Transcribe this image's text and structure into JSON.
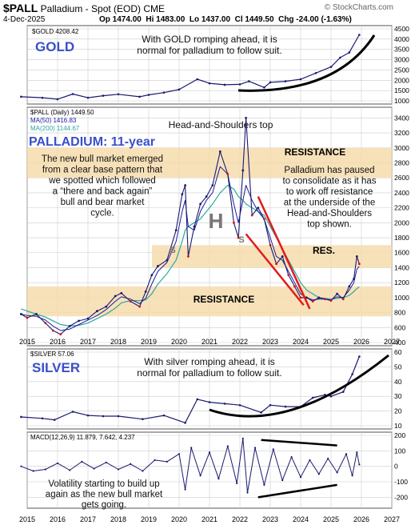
{
  "header": {
    "symbol": "$PALL",
    "description": "Palladium - Spot (EOD)",
    "exchange": "CME",
    "date": "4-Dec-2025",
    "open": "Op 1474.00",
    "high": "Hi 1483.00",
    "low": "Lo 1437.00",
    "close": "Cl 1449.50",
    "change": "Chg -24.00 (-1.63%)",
    "source": "© StockCharts.com"
  },
  "colors": {
    "price": "#1a1a70",
    "bar_down": "#d01010",
    "ma50": "#1a1aa0",
    "ma200": "#2aa8a0",
    "gold_line": "#1a1a70",
    "big_label": "#3a50c8",
    "trend_red": "#e31a1a",
    "band": "#f5d9a8",
    "grid": "#cccccc"
  },
  "x_axis": {
    "years": [
      "2015",
      "2016",
      "2017",
      "2018",
      "2019",
      "2020",
      "2021",
      "2022",
      "2023",
      "2024",
      "2025",
      "2026",
      "2027"
    ]
  },
  "chart_data": [
    {
      "type": "line",
      "id": "gold",
      "legend": "$GOLD 4208.42",
      "label_big": "GOLD",
      "annotation": [
        "With GOLD romping ahead, it is",
        "normal for palladium to follow suit."
      ],
      "x": [
        2014.8,
        2015.5,
        2016.0,
        2016.5,
        2017.0,
        2017.5,
        2018.0,
        2018.7,
        2019.0,
        2019.5,
        2020.0,
        2020.6,
        2021.0,
        2021.5,
        2022.0,
        2022.3,
        2022.8,
        2023.0,
        2023.5,
        2024.0,
        2024.5,
        2025.0,
        2025.3,
        2025.6,
        2025.93
      ],
      "y": [
        1200,
        1150,
        1080,
        1330,
        1150,
        1250,
        1320,
        1200,
        1290,
        1400,
        1550,
        2050,
        1850,
        1780,
        1800,
        1950,
        1650,
        1900,
        1950,
        2050,
        2350,
        2650,
        3100,
        3350,
        4208
      ],
      "ylim": [
        1000,
        4500
      ],
      "ticks": [
        1000,
        1500,
        2000,
        2500,
        3000,
        3500,
        4000,
        4500
      ]
    },
    {
      "type": "line",
      "id": "palladium",
      "legend": "$PALL (Daily) 1449.50",
      "ma50_label": "MA(50) 1416.83",
      "ma200_label": "MA(200) 1144.67",
      "label_big": "PALLADIUM: 11-year",
      "annotation_left": [
        "The new bull market emerged",
        "from a clear base pattern that",
        "we spotted which followed",
        "a “there and back again”",
        "bull and bear market",
        "cycle."
      ],
      "annotation_right": [
        "Palladium has paused",
        "to consolidate as it has",
        "to work off resistance",
        "at the underside of the",
        "Head-and-Shoulders",
        "top shown."
      ],
      "hs_label": "Head-and-Shoulders top",
      "pattern_labels": {
        "left_shoulder": "S",
        "head": "H",
        "right_shoulder": "S"
      },
      "bands": [
        {
          "label": "RESISTANCE",
          "from": 2600,
          "to": 3000
        },
        {
          "label": "RES.",
          "from": 1400,
          "to": 1700
        },
        {
          "label": "RESISTANCE",
          "from": 750,
          "to": 1150
        }
      ],
      "trend_lines": [
        {
          "x": [
            2022.6,
            2024.3
          ],
          "y": [
            2350,
            850
          ]
        },
        {
          "x": [
            2022.2,
            2024.1
          ],
          "y": [
            1850,
            900
          ]
        }
      ],
      "x": [
        2014.8,
        2015.0,
        2015.3,
        2015.6,
        2015.85,
        2016.1,
        2016.4,
        2016.7,
        2017.0,
        2017.3,
        2017.6,
        2017.9,
        2018.1,
        2018.4,
        2018.7,
        2018.9,
        2019.1,
        2019.3,
        2019.6,
        2019.9,
        2020.1,
        2020.2,
        2020.3,
        2020.5,
        2020.7,
        2020.9,
        2021.1,
        2021.35,
        2021.6,
        2021.8,
        2021.95,
        2022.1,
        2022.2,
        2022.4,
        2022.6,
        2022.8,
        2023.0,
        2023.2,
        2023.4,
        2023.6,
        2023.8,
        2024.0,
        2024.2,
        2024.4,
        2024.6,
        2024.8,
        2025.0,
        2025.2,
        2025.4,
        2025.6,
        2025.75,
        2025.85,
        2025.93
      ],
      "y": [
        780,
        730,
        780,
        660,
        560,
        510,
        620,
        690,
        720,
        820,
        880,
        1020,
        1060,
        950,
        880,
        1080,
        1300,
        1420,
        1500,
        1900,
        2380,
        2500,
        1550,
        1950,
        2250,
        2350,
        2500,
        2950,
        2650,
        2000,
        1800,
        2700,
        3400,
        2100,
        2200,
        2050,
        1700,
        1450,
        1550,
        1300,
        1150,
        1000,
        1000,
        950,
        1000,
        980,
        960,
        1050,
        980,
        1150,
        1250,
        1550,
        1450
      ],
      "ma50": [
        780,
        760,
        750,
        700,
        620,
        560,
        580,
        640,
        700,
        760,
        840,
        950,
        1010,
        980,
        920,
        990,
        1180,
        1350,
        1470,
        1750,
        2150,
        2300,
        1950,
        1900,
        2150,
        2300,
        2400,
        2750,
        2650,
        2250,
        2000,
        2300,
        2500,
        2300,
        2150,
        2050,
        1800,
        1550,
        1500,
        1350,
        1200,
        1050,
        1000,
        970,
        980,
        980,
        970,
        1010,
        1000,
        1100,
        1200,
        1380,
        1417
      ],
      "ma200": [
        850,
        820,
        780,
        740,
        690,
        640,
        620,
        630,
        660,
        720,
        780,
        860,
        930,
        960,
        960,
        970,
        1050,
        1180,
        1320,
        1500,
        1750,
        1900,
        1950,
        2000,
        2050,
        2150,
        2250,
        2400,
        2500,
        2450,
        2350,
        2300,
        2250,
        2200,
        2150,
        2100,
        1950,
        1800,
        1650,
        1500,
        1350,
        1200,
        1100,
        1050,
        1000,
        990,
        980,
        990,
        1000,
        1030,
        1080,
        1120,
        1145
      ],
      "ylim": [
        400,
        3500
      ],
      "ticks": [
        400,
        600,
        800,
        1000,
        1200,
        1400,
        1600,
        1800,
        2000,
        2200,
        2400,
        2600,
        2800,
        3000,
        3200,
        3400
      ]
    },
    {
      "type": "line",
      "id": "silver",
      "legend": "$SILVER 57.06",
      "label_big": "SILVER",
      "annotation": [
        "With silver romping ahead, it is",
        "normal for palladium to follow suit."
      ],
      "x": [
        2014.8,
        2015.5,
        2015.9,
        2016.5,
        2017.0,
        2017.5,
        2018.0,
        2018.8,
        2019.5,
        2020.2,
        2020.6,
        2021.0,
        2021.5,
        2022.0,
        2022.7,
        2023.0,
        2023.5,
        2024.0,
        2024.4,
        2024.8,
        2025.0,
        2025.4,
        2025.7,
        2025.93
      ],
      "y": [
        16,
        15,
        14,
        19.5,
        17,
        16.5,
        16.5,
        14.5,
        17,
        12,
        28,
        26,
        25,
        24,
        19,
        24,
        23,
        23,
        29,
        31,
        30,
        33,
        45,
        57
      ],
      "ylim": [
        10,
        60
      ],
      "ticks": [
        10,
        20,
        30,
        40,
        50,
        60
      ]
    },
    {
      "type": "line",
      "id": "macd",
      "legend": "MACD(12,26,9) 11.879, 7.642, 4.237",
      "annotation": [
        "Volatility starting to build up",
        "again as the new bull market",
        "gets going."
      ],
      "trend_lines": [
        {
          "x": [
            2022.7,
            2025.2
          ],
          "y": [
            170,
            135
          ]
        },
        {
          "x": [
            2022.6,
            2025.2
          ],
          "y": [
            -200,
            -120
          ]
        }
      ],
      "x": [
        2014.8,
        2015.2,
        2015.6,
        2016.0,
        2016.4,
        2016.8,
        2017.2,
        2017.6,
        2018.0,
        2018.4,
        2018.8,
        2019.2,
        2019.6,
        2020.0,
        2020.2,
        2020.4,
        2020.7,
        2021.0,
        2021.3,
        2021.6,
        2021.9,
        2022.1,
        2022.25,
        2022.5,
        2022.8,
        2023.1,
        2023.4,
        2023.7,
        2024.0,
        2024.3,
        2024.6,
        2024.9,
        2025.2,
        2025.5,
        2025.7,
        2025.85,
        2025.93
      ],
      "y": [
        0,
        -30,
        -20,
        20,
        -25,
        30,
        -15,
        25,
        -20,
        15,
        -30,
        40,
        30,
        80,
        -150,
        120,
        -60,
        90,
        -80,
        130,
        -110,
        180,
        -170,
        120,
        -120,
        110,
        -90,
        60,
        -70,
        40,
        -50,
        50,
        -40,
        80,
        -60,
        90,
        12
      ],
      "ylim": [
        -250,
        200
      ],
      "ticks": [
        -200,
        -100,
        0,
        100,
        200
      ]
    }
  ]
}
